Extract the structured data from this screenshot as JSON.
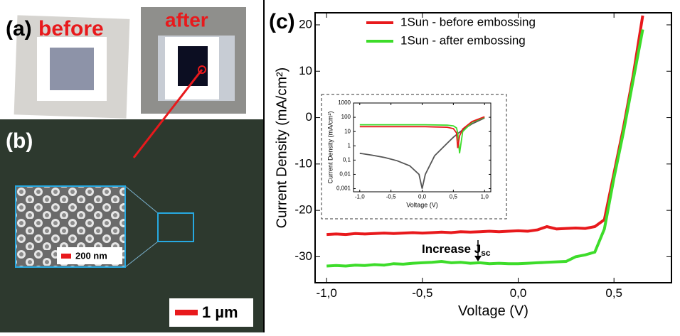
{
  "panel_a": {
    "label": "(a)",
    "before": "before",
    "after": "after"
  },
  "panel_b": {
    "label": "(b)",
    "inset_scale": "200 nm",
    "scale": "1 µm"
  },
  "panel_c": {
    "label": "(c)",
    "annotation": "Increase J",
    "annotation_sub": "sc"
  },
  "chart_data": [
    {
      "type": "line",
      "x_label": "Voltage (V)",
      "y_label": "Current Density (mA/cm²)",
      "x": [
        -1.0,
        -0.95,
        -0.9,
        -0.85,
        -0.8,
        -0.75,
        -0.7,
        -0.65,
        -0.6,
        -0.55,
        -0.5,
        -0.45,
        -0.4,
        -0.35,
        -0.3,
        -0.25,
        -0.2,
        -0.15,
        -0.1,
        -0.05,
        0.0,
        0.05,
        0.1,
        0.15,
        0.2,
        0.25,
        0.3,
        0.35,
        0.4,
        0.45,
        0.5,
        0.55,
        0.6,
        0.65
      ],
      "series": [
        {
          "name": "1Sun - before embossing",
          "color": "#e8191c",
          "values": [
            -25.2,
            -25.1,
            -25.2,
            -25.0,
            -25.1,
            -25.0,
            -24.9,
            -25.0,
            -24.9,
            -24.8,
            -24.9,
            -24.8,
            -24.7,
            -24.8,
            -24.6,
            -24.7,
            -24.6,
            -24.5,
            -24.6,
            -24.5,
            -24.4,
            -24.5,
            -24.2,
            -23.5,
            -24.0,
            -23.9,
            -23.8,
            -23.9,
            -23.5,
            -22.0,
            -12.0,
            -2.0,
            9.0,
            22.0
          ]
        },
        {
          "name": "1Sun - after embossing",
          "color": "#3ddc2a",
          "values": [
            -32.0,
            -31.9,
            -32.0,
            -31.8,
            -31.9,
            -31.7,
            -31.8,
            -31.5,
            -31.6,
            -31.4,
            -31.3,
            -31.2,
            -31.0,
            -31.3,
            -31.2,
            -31.4,
            -31.3,
            -31.5,
            -31.4,
            -31.5,
            -31.5,
            -31.4,
            -31.3,
            -31.2,
            -31.1,
            -31.0,
            -30.0,
            -29.6,
            -29.0,
            -24.0,
            -13.0,
            -3.0,
            8.0,
            19.0
          ]
        }
      ],
      "xlim": [
        -1.06,
        0.8
      ],
      "ylim": [
        -35.6,
        22.6
      ],
      "xticks": [
        {
          "value": -1.0,
          "label": "-1,0"
        },
        {
          "value": -0.5,
          "label": "-0,5"
        },
        {
          "value": 0.0,
          "label": "0,0"
        },
        {
          "value": 0.5,
          "label": "0,5"
        }
      ],
      "yticks": [
        -30,
        -20,
        -10,
        0,
        10,
        20
      ],
      "legend": "upper center"
    },
    {
      "type": "line",
      "log_y": true,
      "x_label": "Voltage (V)",
      "y_label": "Current Density (mA/cm²)",
      "x": [
        -1.0,
        -0.8,
        -0.6,
        -0.4,
        -0.2,
        -0.05,
        0.0,
        0.05,
        0.2,
        0.4,
        0.5,
        0.55,
        0.57,
        0.6,
        0.65,
        0.8,
        1.0
      ],
      "series": [
        {
          "color": "#555555",
          "values": [
            0.3,
            0.22,
            0.15,
            0.09,
            0.04,
            0.01,
            0.001,
            0.01,
            0.2,
            1.5,
            4,
            6,
            7,
            9,
            13,
            35,
            90
          ]
        },
        {
          "color": "#3ddc2a",
          "values": [
            30,
            30,
            30,
            30,
            30,
            30,
            30,
            30,
            29,
            28,
            25,
            18,
            8,
            0.3,
            10,
            45,
            100
          ]
        },
        {
          "color": "#e8191c",
          "values": [
            22,
            22,
            22,
            22,
            22,
            22,
            22,
            22,
            21,
            20,
            16,
            8,
            0.7,
            5,
            15,
            50,
            110
          ]
        }
      ],
      "xlim": [
        -1.1,
        1.1
      ],
      "ylim": [
        0.0006,
        1000
      ],
      "xticks": [
        {
          "value": -1.0,
          "label": "-1,0"
        },
        {
          "value": -0.5,
          "label": "-0,5"
        },
        {
          "value": 0.0,
          "label": "0,0"
        },
        {
          "value": 0.5,
          "label": "0,5"
        },
        {
          "value": 1.0,
          "label": "1,0"
        }
      ],
      "yticks": [
        {
          "value": 0.001,
          "label": "0,001"
        },
        {
          "value": 0.01,
          "label": "0,01"
        },
        {
          "value": 0.1,
          "label": "0,1"
        },
        1,
        10,
        100,
        1000
      ]
    }
  ]
}
